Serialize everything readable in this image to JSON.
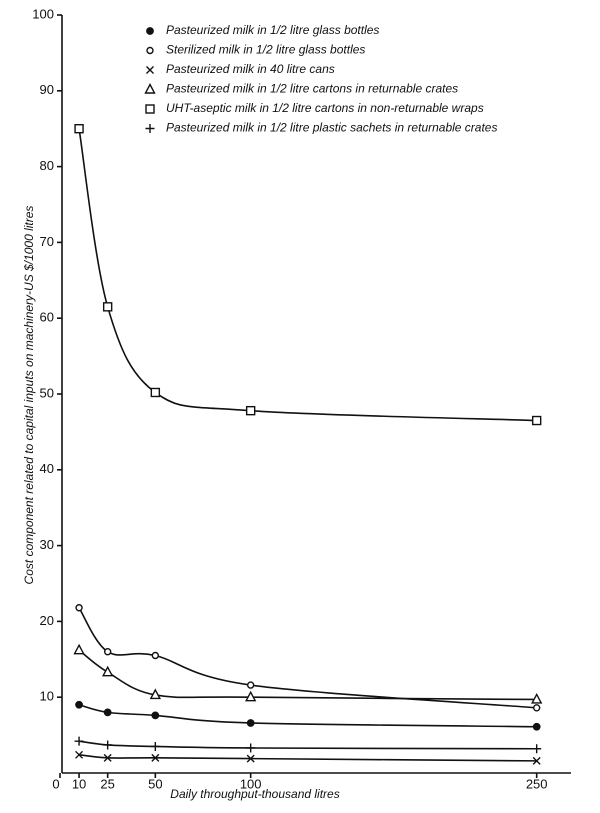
{
  "chart_data": {
    "type": "line",
    "x_label": "Daily throughput-thousand litres",
    "y_label": "Cost component related to capital inputs on machinery-US $/1000 litres",
    "x": [
      10,
      25,
      50,
      100,
      250
    ],
    "xlim": [
      0,
      268
    ],
    "xticks": [
      0,
      10,
      25,
      50,
      100,
      250
    ],
    "ylim": [
      0,
      100
    ],
    "yticks": [
      10,
      20,
      30,
      40,
      50,
      60,
      70,
      80,
      90,
      100
    ],
    "series": [
      {
        "name": "Pasteurized milk in 1/2 litre glass bottles",
        "color": "#111111",
        "marker": "filled-circle",
        "values": [
          9.0,
          8.0,
          7.6,
          6.6,
          6.1
        ]
      },
      {
        "name": "Sterilized milk in 1/2 litre glass bottles",
        "color": "#111111",
        "marker": "open-circle",
        "values": [
          21.8,
          16.0,
          15.5,
          11.6,
          8.6
        ]
      },
      {
        "name": "Pasteurized milk in 40 litre cans",
        "color": "#111111",
        "marker": "cross",
        "values": [
          2.4,
          2.0,
          2.0,
          1.9,
          1.6
        ]
      },
      {
        "name": "Pasteurized milk in 1/2 litre cartons in returnable crates",
        "color": "#111111",
        "marker": "triangle",
        "values": [
          16.2,
          13.3,
          10.3,
          10.0,
          9.7
        ]
      },
      {
        "name": "UHT-aseptic milk in 1/2 litre cartons in non-returnable wraps",
        "color": "#111111",
        "marker": "square",
        "values": [
          85.0,
          61.5,
          50.2,
          47.8,
          46.5
        ]
      },
      {
        "name": "Pasteurized milk in 1/2 litre plastic sachets in returnable crates",
        "color": "#111111",
        "marker": "plus",
        "values": [
          4.2,
          3.7,
          3.5,
          3.3,
          3.2
        ]
      }
    ]
  }
}
